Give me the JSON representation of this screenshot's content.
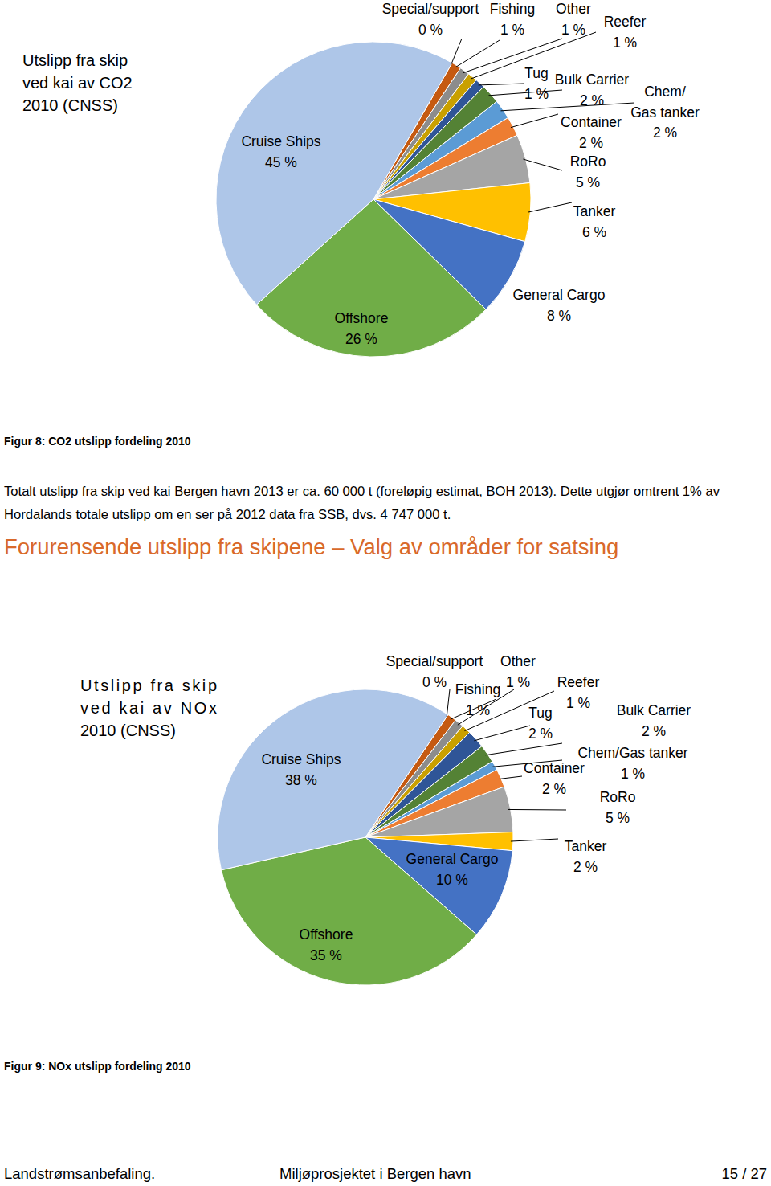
{
  "chart_data": [
    {
      "type": "pie",
      "title": "Utslipp fra skip ved kai av CO2 2010 (CNSS)",
      "caption": "Figur 8: CO2 utslipp fordeling 2010",
      "categories": [
        "Special/support",
        "Fishing",
        "Other",
        "Reefer",
        "Tug",
        "Bulk Carrier",
        "Chem/Gas tanker",
        "Container",
        "RoRo",
        "Tanker",
        "General Cargo",
        "Offshore",
        "Cruise Ships"
      ],
      "values": [
        0,
        1,
        1,
        1,
        1,
        2,
        2,
        2,
        5,
        6,
        8,
        26,
        45
      ],
      "value_labels": [
        "0 %",
        "1 %",
        "1 %",
        "1 %",
        "1 %",
        "2 %",
        "2 %",
        "2 %",
        "5 %",
        "6 %",
        "8 %",
        "26 %",
        "45 %"
      ],
      "colors": [
        "#D0601A",
        "#C55A11",
        "#8C8C8C",
        "#C9A000",
        "#2F5597",
        "#548235",
        "#5B9BD5",
        "#ED7D31",
        "#A5A5A5",
        "#FFC000",
        "#4472C4",
        "#70AD47",
        "#AEC6E8"
      ],
      "data_labels": true
    },
    {
      "type": "pie",
      "title": "Utslipp fra skip ved kai av NOx 2010 (CNSS)",
      "caption": "Figur 9: NOx utslipp fordeling 2010",
      "categories": [
        "Special/support",
        "Fishing",
        "Other",
        "Reefer",
        "Tug",
        "Bulk Carrier",
        "Chem/Gas tanker",
        "Container",
        "RoRo",
        "Tanker",
        "General Cargo",
        "Offshore",
        "Cruise Ships"
      ],
      "values": [
        0,
        1,
        1,
        1,
        2,
        2,
        1,
        2,
        5,
        2,
        10,
        35,
        38
      ],
      "value_labels": [
        "0 %",
        "1 %",
        "1 %",
        "1 %",
        "2 %",
        "2 %",
        "1 %",
        "2 %",
        "5 %",
        "2 %",
        "10 %",
        "35 %",
        "38 %"
      ],
      "colors": [
        "#D0601A",
        "#C55A11",
        "#8C8C8C",
        "#C9A000",
        "#2F5597",
        "#548235",
        "#5B9BD5",
        "#ED7D31",
        "#A5A5A5",
        "#FFC000",
        "#4472C4",
        "#70AD47",
        "#AEC6E8"
      ],
      "data_labels": true
    }
  ],
  "document": {
    "paragraph": "Totalt utslipp fra skip ved kai Bergen havn 2013 er ca. 60 000 t (foreløpig estimat, BOH 2013). Dette utgjør omtrent 1% av Hordalands totale utslipp om en ser på 2012 data fra SSB, dvs. 4 747 000 t.",
    "heading": "Forurensende utslipp fra skipene – Valg av områder for satsing",
    "footer": {
      "left": "Landstrømsanbefaling.",
      "center": "Miljøprosjektet i Bergen havn",
      "right": "15 / 27"
    }
  }
}
